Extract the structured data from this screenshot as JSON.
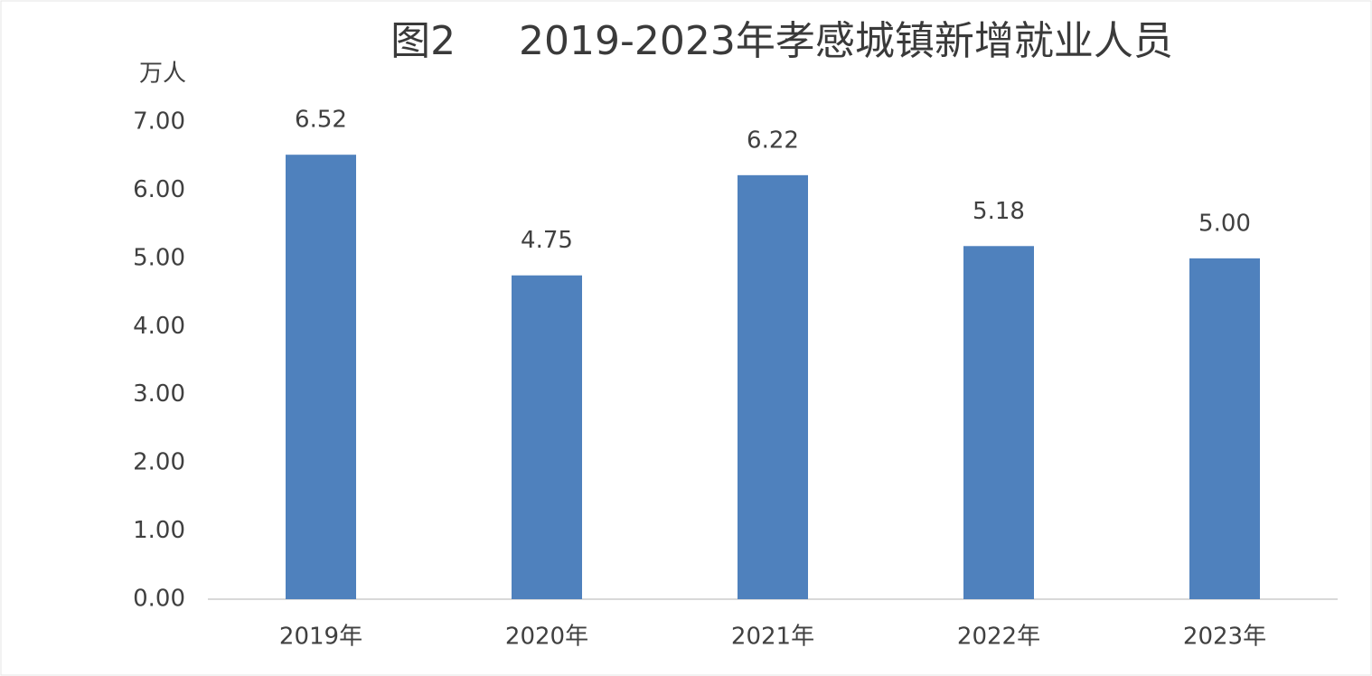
{
  "chart_data": {
    "type": "bar",
    "title": "图2     2019-2023年孝感城镇新增就业人员",
    "y_label": "万人",
    "categories": [
      "2019年",
      "2020年",
      "2021年",
      "2022年",
      "2023年"
    ],
    "values": [
      6.52,
      4.75,
      6.22,
      5.18,
      5.0
    ],
    "value_labels": [
      "6.52",
      "4.75",
      "6.22",
      "5.18",
      "5.00"
    ],
    "color": "#4f81bd",
    "ylim": [
      0,
      7
    ],
    "yticks": [
      {
        "value": 0,
        "label": "0.00"
      },
      {
        "value": 1,
        "label": "1.00"
      },
      {
        "value": 2,
        "label": "2.00"
      },
      {
        "value": 3,
        "label": "3.00"
      },
      {
        "value": 4,
        "label": "4.00"
      },
      {
        "value": 5,
        "label": "5.00"
      },
      {
        "value": 6,
        "label": "6.00"
      },
      {
        "value": 7,
        "label": "7.00"
      }
    ],
    "grid": false
  }
}
